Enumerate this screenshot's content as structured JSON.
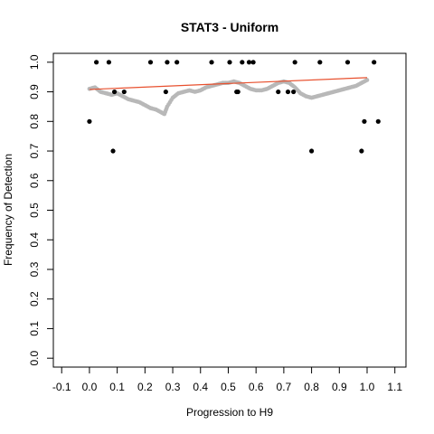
{
  "chart_data": {
    "type": "scatter",
    "title": "STAT3 - Uniform",
    "xlabel": "Progression to H9",
    "ylabel": "Frequency of Detection",
    "xlim": [
      -0.13,
      1.14
    ],
    "ylim": [
      -0.03,
      1.03
    ],
    "xticks": [
      -0.1,
      0.0,
      0.1,
      0.2,
      0.3,
      0.4,
      0.5,
      0.6,
      0.7,
      0.8,
      0.9,
      1.0,
      1.1
    ],
    "xtick_labels": [
      "-0.1",
      "0.0",
      "0.1",
      "0.2",
      "0.3",
      "0.4",
      "0.5",
      "0.6",
      "0.7",
      "0.8",
      "0.9",
      "1.0",
      "1.1"
    ],
    "yticks": [
      0.0,
      0.1,
      0.2,
      0.3,
      0.4,
      0.5,
      0.6,
      0.7,
      0.8,
      0.9,
      1.0
    ],
    "ytick_labels": [
      "0.0",
      "0.1",
      "0.2",
      "0.3",
      "0.4",
      "0.5",
      "0.6",
      "0.7",
      "0.8",
      "0.9",
      "1.0"
    ],
    "grid": false,
    "colors": {
      "points": "#000000",
      "smooth": "#b8b8b8",
      "fit": "#e8502e"
    },
    "series": [
      {
        "kind": "points",
        "x": [
          0.0,
          0.025,
          0.07,
          0.09,
          0.085,
          0.125,
          0.22,
          0.275,
          0.28,
          0.315,
          0.44,
          0.505,
          0.53,
          0.535,
          0.55,
          0.575,
          0.59,
          0.68,
          0.715,
          0.735,
          0.74,
          0.8,
          0.83,
          0.93,
          0.98,
          0.99,
          1.025,
          1.04
        ],
        "y": [
          0.8,
          1.0,
          1.0,
          0.9,
          0.7,
          0.9,
          1.0,
          0.9,
          1.0,
          1.0,
          1.0,
          1.0,
          0.9,
          0.9,
          1.0,
          1.0,
          1.0,
          0.9,
          0.9,
          0.9,
          1.0,
          0.7,
          1.0,
          1.0,
          0.7,
          0.8,
          1.0,
          0.8
        ]
      },
      {
        "kind": "smooth",
        "x": [
          0.0,
          0.02,
          0.04,
          0.06,
          0.08,
          0.1,
          0.12,
          0.14,
          0.16,
          0.18,
          0.2,
          0.22,
          0.24,
          0.26,
          0.27,
          0.28,
          0.3,
          0.32,
          0.34,
          0.36,
          0.38,
          0.4,
          0.42,
          0.44,
          0.46,
          0.48,
          0.5,
          0.52,
          0.54,
          0.56,
          0.58,
          0.6,
          0.62,
          0.64,
          0.66,
          0.68,
          0.7,
          0.72,
          0.74,
          0.76,
          0.78,
          0.8,
          0.82,
          0.84,
          0.86,
          0.88,
          0.9,
          0.92,
          0.94,
          0.96,
          0.98,
          1.0
        ],
        "y": [
          0.91,
          0.915,
          0.9,
          0.895,
          0.89,
          0.895,
          0.885,
          0.875,
          0.87,
          0.865,
          0.855,
          0.845,
          0.84,
          0.83,
          0.825,
          0.85,
          0.88,
          0.895,
          0.9,
          0.905,
          0.9,
          0.905,
          0.915,
          0.92,
          0.925,
          0.93,
          0.93,
          0.935,
          0.93,
          0.92,
          0.91,
          0.905,
          0.905,
          0.91,
          0.92,
          0.93,
          0.935,
          0.93,
          0.915,
          0.895,
          0.885,
          0.88,
          0.885,
          0.89,
          0.895,
          0.9,
          0.905,
          0.91,
          0.915,
          0.92,
          0.93,
          0.94
        ]
      },
      {
        "kind": "fit",
        "x": [
          0.0,
          1.0
        ],
        "y": [
          0.908,
          0.948
        ]
      }
    ]
  }
}
